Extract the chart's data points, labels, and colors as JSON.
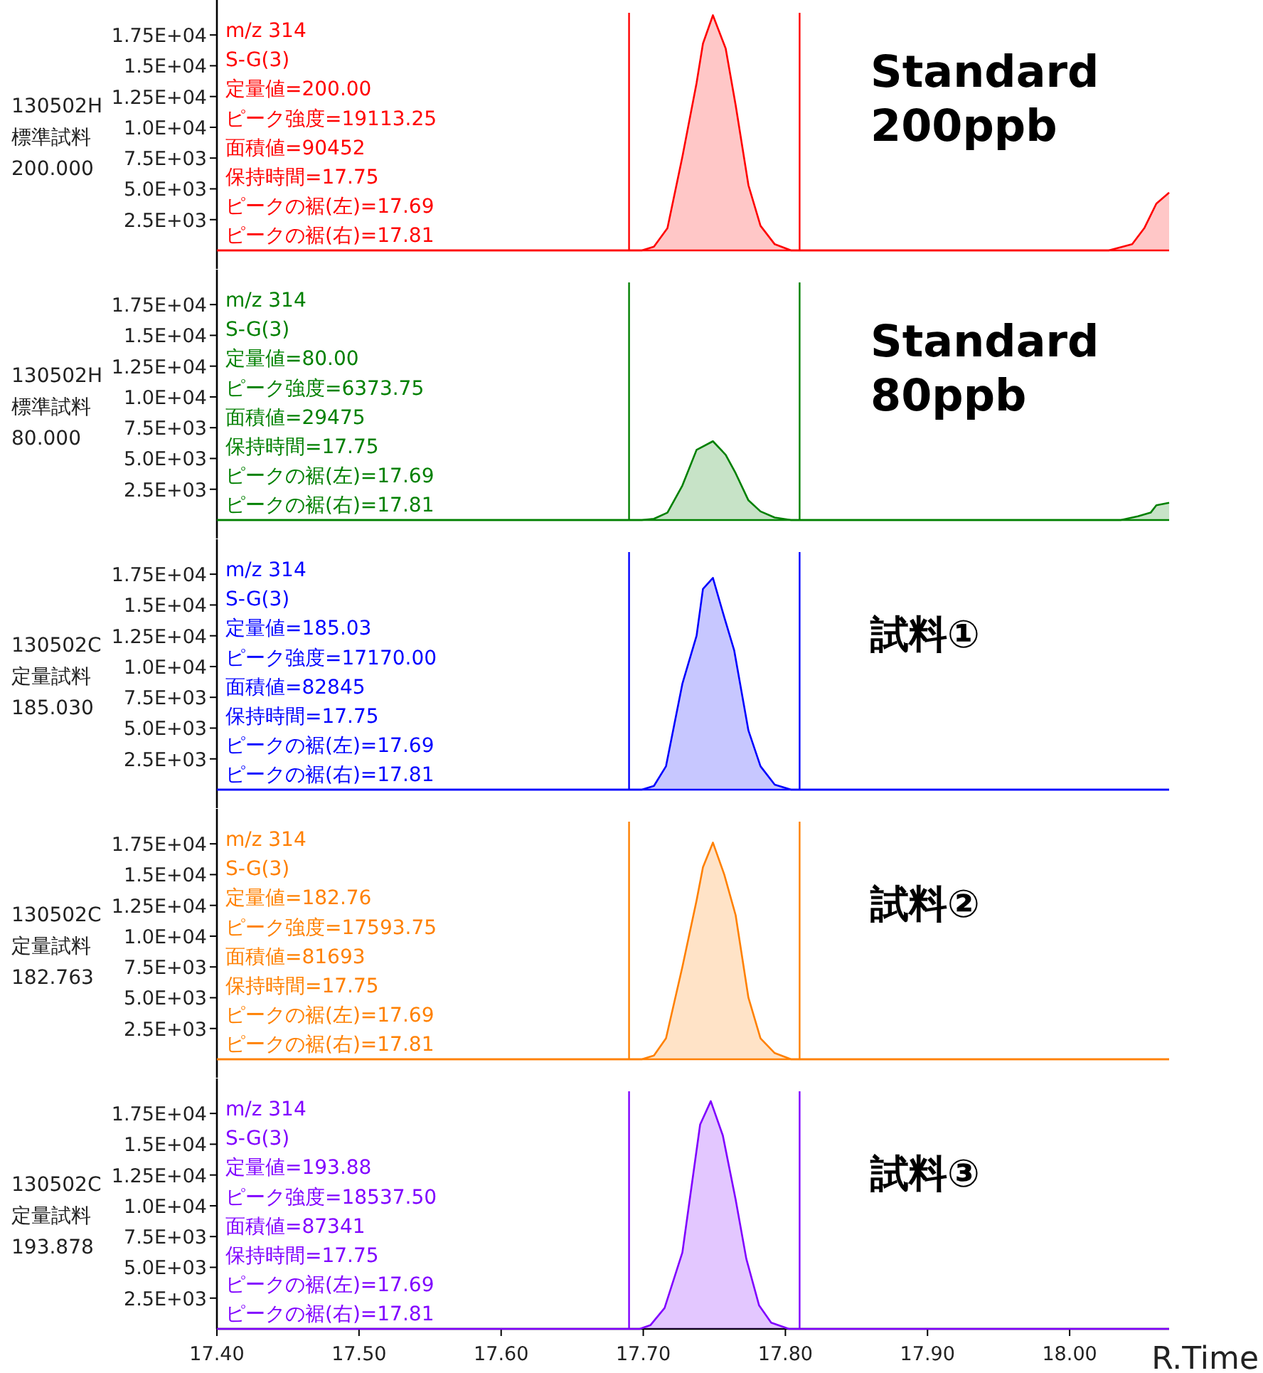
{
  "chart_data": [
    {
      "type": "area",
      "ylabel": "130502H\n標準試料\n200.000",
      "xlim": [
        17.4,
        18.07
      ],
      "ylim": [
        0,
        19300
      ],
      "tick_labels": "y",
      "yticks": [
        {
          "value": 2500,
          "label": "2.5E+03"
        },
        {
          "value": 5000,
          "label": "5.0E+03"
        },
        {
          "value": 7500,
          "label": "7.5E+03"
        },
        {
          "value": 10000,
          "label": "1.0E+04"
        },
        {
          "value": 12500,
          "label": "1.25E+04"
        },
        {
          "value": 15000,
          "label": "1.5E+04"
        },
        {
          "value": 17500,
          "label": "1.75E+04"
        }
      ],
      "series": [
        {
          "color": "#ff0000",
          "x": [
            17.4,
            17.699,
            17.7075,
            17.717,
            17.7275,
            17.7375,
            17.742,
            17.749,
            17.758,
            17.765,
            17.774,
            17.7825,
            17.7925,
            17.804,
            18.0275,
            18.044,
            18.0525,
            18.061,
            18.07
          ],
          "values": [
            0,
            0,
            300,
            1800,
            7600,
            13600,
            16800,
            19100,
            16400,
            11800,
            5300,
            2000,
            500,
            0,
            0,
            500,
            1800,
            3800,
            4700
          ]
        }
      ],
      "ref_lines": [
        {
          "axis": "x",
          "value": 17.69,
          "color": "#ff0000"
        },
        {
          "axis": "x",
          "value": 17.81,
          "color": "#ff0000"
        }
      ],
      "annotations": [
        "m/z 314",
        "S-G(3)",
        "定量値=200.00",
        "ピーク強度=19113.25",
        "面積値=90452",
        "保持時間=17.75",
        "ピークの裾(左)=17.69",
        "ピークの裾(右)=17.81",
        "Standard\n200ppb"
      ]
    },
    {
      "type": "area",
      "ylabel": "130502H\n標準試料\n80.000",
      "xlim": [
        17.4,
        18.07
      ],
      "ylim": [
        0,
        19300
      ],
      "tick_labels": "y",
      "yticks": [
        {
          "value": 2500,
          "label": "2.5E+03"
        },
        {
          "value": 5000,
          "label": "5.0E+03"
        },
        {
          "value": 7500,
          "label": "7.5E+03"
        },
        {
          "value": 10000,
          "label": "1.0E+04"
        },
        {
          "value": 12500,
          "label": "1.25E+04"
        },
        {
          "value": 15000,
          "label": "1.5E+04"
        },
        {
          "value": 17500,
          "label": "1.75E+04"
        }
      ],
      "series": [
        {
          "color": "#008000",
          "x": [
            17.4,
            17.699,
            17.7075,
            17.717,
            17.7275,
            17.7375,
            17.749,
            17.758,
            17.765,
            17.774,
            17.7825,
            17.7925,
            17.804,
            18.036,
            18.048,
            18.057,
            18.061,
            18.07
          ],
          "values": [
            0,
            0,
            100,
            600,
            2800,
            5700,
            6400,
            5300,
            3800,
            1600,
            700,
            200,
            0,
            0,
            300,
            600,
            1200,
            1400
          ]
        }
      ],
      "ref_lines": [
        {
          "axis": "x",
          "value": 17.69,
          "color": "#008000"
        },
        {
          "axis": "x",
          "value": 17.81,
          "color": "#008000"
        }
      ],
      "annotations": [
        "m/z 314",
        "S-G(3)",
        "定量値=80.00",
        "ピーク強度=6373.75",
        "面積値=29475",
        "保持時間=17.75",
        "ピークの裾(左)=17.69",
        "ピークの裾(右)=17.81",
        "Standard\n80ppb"
      ]
    },
    {
      "type": "area",
      "ylabel": "130502C\n定量試料\n185.030",
      "xlim": [
        17.4,
        18.07
      ],
      "ylim": [
        0,
        19300
      ],
      "tick_labels": "y",
      "yticks": [
        {
          "value": 2500,
          "label": "2.5E+03"
        },
        {
          "value": 5000,
          "label": "5.0E+03"
        },
        {
          "value": 7500,
          "label": "7.5E+03"
        },
        {
          "value": 10000,
          "label": "1.0E+04"
        },
        {
          "value": 12500,
          "label": "1.25E+04"
        },
        {
          "value": 15000,
          "label": "1.5E+04"
        },
        {
          "value": 17500,
          "label": "1.75E+04"
        }
      ],
      "series": [
        {
          "color": "#0000ff",
          "x": [
            17.4,
            17.699,
            17.7075,
            17.716,
            17.7275,
            17.7375,
            17.742,
            17.749,
            17.757,
            17.764,
            17.774,
            17.7825,
            17.7925,
            17.804,
            18.07
          ],
          "values": [
            0,
            0,
            300,
            1900,
            8600,
            12500,
            16300,
            17200,
            14000,
            11300,
            4800,
            1900,
            400,
            0,
            0
          ]
        }
      ],
      "ref_lines": [
        {
          "axis": "x",
          "value": 17.69,
          "color": "#0000ff"
        },
        {
          "axis": "x",
          "value": 17.81,
          "color": "#0000ff"
        }
      ],
      "annotations": [
        "m/z 314",
        "S-G(3)",
        "定量値=185.03",
        "ピーク強度=17170.00",
        "面積値=82845",
        "保持時間=17.75",
        "ピークの裾(左)=17.69",
        "ピークの裾(右)=17.81",
        "試料①"
      ]
    },
    {
      "type": "area",
      "ylabel": "130502C\n定量試料\n182.763",
      "xlim": [
        17.4,
        18.07
      ],
      "ylim": [
        0,
        19300
      ],
      "tick_labels": "y",
      "yticks": [
        {
          "value": 2500,
          "label": "2.5E+03"
        },
        {
          "value": 5000,
          "label": "5.0E+03"
        },
        {
          "value": 7500,
          "label": "7.5E+03"
        },
        {
          "value": 10000,
          "label": "1.0E+04"
        },
        {
          "value": 12500,
          "label": "1.25E+04"
        },
        {
          "value": 15000,
          "label": "1.5E+04"
        },
        {
          "value": 17500,
          "label": "1.75E+04"
        }
      ],
      "series": [
        {
          "color": "#ff8000",
          "x": [
            17.4,
            17.699,
            17.7075,
            17.716,
            17.7275,
            17.7375,
            17.742,
            17.749,
            17.757,
            17.765,
            17.774,
            17.7825,
            17.7925,
            17.804,
            18.07
          ],
          "values": [
            0,
            0,
            300,
            1700,
            7500,
            12900,
            15600,
            17600,
            15000,
            11700,
            5000,
            1700,
            500,
            0,
            0
          ]
        }
      ],
      "ref_lines": [
        {
          "axis": "x",
          "value": 17.69,
          "color": "#ff8000"
        },
        {
          "axis": "x",
          "value": 17.81,
          "color": "#ff8000"
        }
      ],
      "annotations": [
        "m/z 314",
        "S-G(3)",
        "定量値=182.76",
        "ピーク強度=17593.75",
        "面積値=81693",
        "保持時間=17.75",
        "ピークの裾(左)=17.69",
        "ピークの裾(右)=17.81",
        "試料②"
      ]
    },
    {
      "type": "area",
      "ylabel": "130502C\n定量試料\n193.878",
      "xlabel": "R.Time",
      "xlim": [
        17.4,
        18.07
      ],
      "ylim": [
        0,
        19300
      ],
      "xticks": [
        {
          "value": 17.4,
          "label": "17.40"
        },
        {
          "value": 17.5,
          "label": "17.50"
        },
        {
          "value": 17.6,
          "label": "17.60"
        },
        {
          "value": 17.7,
          "label": "17.70"
        },
        {
          "value": 17.8,
          "label": "17.80"
        },
        {
          "value": 17.9,
          "label": "17.90"
        },
        {
          "value": 18.0,
          "label": "18.00"
        }
      ],
      "yticks": [
        {
          "value": 2500,
          "label": "2.5E+03"
        },
        {
          "value": 5000,
          "label": "5.0E+03"
        },
        {
          "value": 7500,
          "label": "7.5E+03"
        },
        {
          "value": 10000,
          "label": "1.0E+04"
        },
        {
          "value": 12500,
          "label": "1.25E+04"
        },
        {
          "value": 15000,
          "label": "1.5E+04"
        },
        {
          "value": 17500,
          "label": "1.75E+04"
        }
      ],
      "series": [
        {
          "color": "#8000ff",
          "x": [
            17.4,
            17.6975,
            17.705,
            17.715,
            17.7275,
            17.74,
            17.7475,
            17.756,
            17.765,
            17.7725,
            17.7815,
            17.79,
            17.8025,
            18.07
          ],
          "values": [
            0,
            0,
            300,
            1700,
            6200,
            16600,
            18500,
            15700,
            10500,
            5700,
            1900,
            500,
            0,
            0
          ]
        }
      ],
      "ref_lines": [
        {
          "axis": "x",
          "value": 17.69,
          "color": "#8000ff"
        },
        {
          "axis": "x",
          "value": 17.81,
          "color": "#8000ff"
        }
      ],
      "annotations": [
        "m/z 314",
        "S-G(3)",
        "定量値=193.88",
        "ピーク強度=18537.50",
        "面積値=87341",
        "保持時間=17.75",
        "ピークの裾(左)=17.69",
        "ピークの裾(右)=17.81",
        "試料③"
      ]
    }
  ]
}
